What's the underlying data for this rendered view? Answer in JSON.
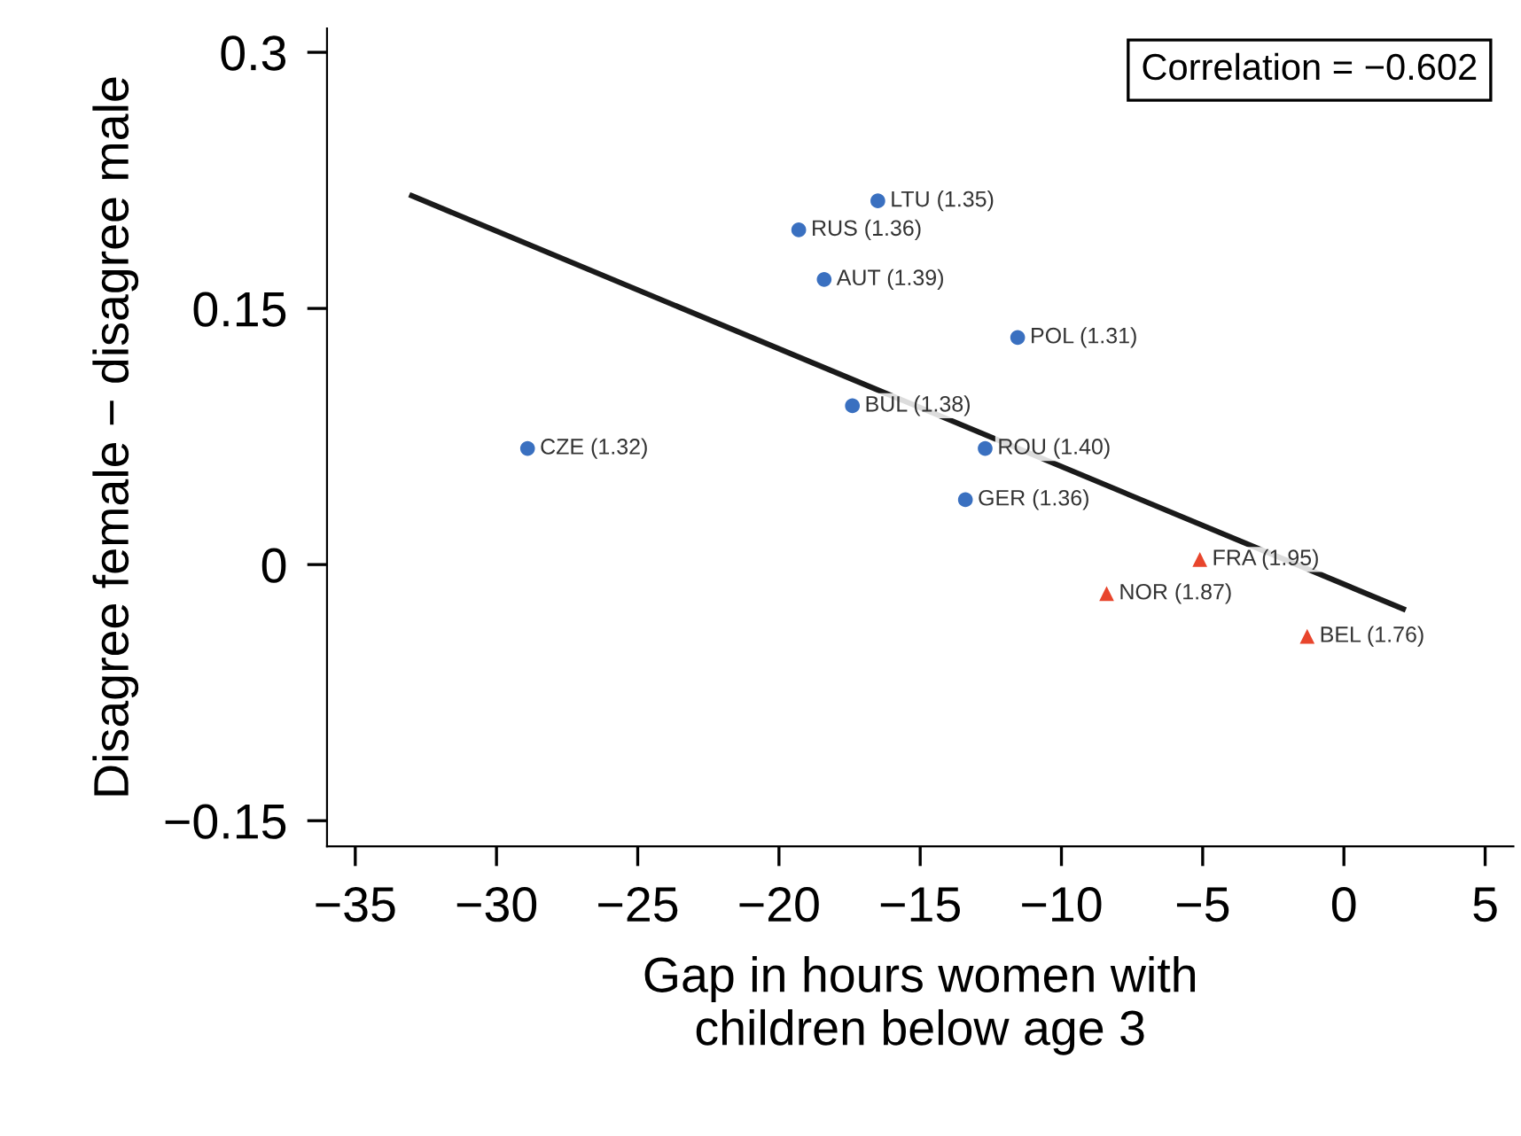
{
  "chart_data": {
    "type": "scatter",
    "xlabel": "Gap in hours women with\nchildren below age 3",
    "ylabel": "Disagree female − disagree male",
    "xlim": [
      -36,
      6
    ],
    "ylim": [
      -0.165,
      0.314
    ],
    "xticks": [
      {
        "value": -35,
        "label": "−35"
      },
      {
        "value": -30,
        "label": "−30"
      },
      {
        "value": -25,
        "label": "−25"
      },
      {
        "value": -20,
        "label": "−20"
      },
      {
        "value": -15,
        "label": "−15"
      },
      {
        "value": -10,
        "label": "−10"
      },
      {
        "value": -5,
        "label": "−5"
      },
      0,
      5
    ],
    "yticks": [
      {
        "value": -0.15,
        "label": "−0.15"
      },
      0,
      0.15,
      0.3
    ],
    "grid": false,
    "legend": false,
    "series": [
      {
        "color": "#3a70c0",
        "marker": "circle",
        "x": [
          -16.5,
          -19.3,
          -18.4,
          -11.55,
          -17.4,
          -28.9,
          -12.7,
          -13.4
        ],
        "values": [
          0.213,
          0.196,
          0.167,
          0.133,
          0.093,
          0.068,
          0.068,
          0.038
        ]
      },
      {
        "color": "#e8452c",
        "marker": "triangle",
        "x": [
          -5.1,
          -8.4,
          -1.3
        ],
        "values": [
          0.003,
          -0.017,
          -0.042
        ]
      },
      {
        "type": "line",
        "color": "#1a1a1a",
        "marker": "none",
        "line_style": "solid",
        "x": [
          -33.0,
          2.1
        ],
        "values": [
          0.216,
          -0.026
        ]
      }
    ],
    "annotations": [
      {
        "text": "LTU (1.35)",
        "x": -16.5,
        "y": 0.213
      },
      {
        "text": "RUS (1.36)",
        "x": -19.3,
        "y": 0.196
      },
      {
        "text": "AUT (1.39)",
        "x": -18.4,
        "y": 0.167
      },
      {
        "text": "POL (1.31)",
        "x": -11.55,
        "y": 0.133
      },
      {
        "text": "BUL (1.38)",
        "x": -17.4,
        "y": 0.093
      },
      {
        "text": "CZE (1.32)",
        "x": -28.9,
        "y": 0.068
      },
      {
        "text": "ROU (1.40)",
        "x": -12.7,
        "y": 0.068
      },
      {
        "text": "GER (1.36)",
        "x": -13.4,
        "y": 0.038
      },
      {
        "text": "FRA (1.95)",
        "x": -5.1,
        "y": 0.003
      },
      {
        "text": "NOR (1.87)",
        "x": -8.4,
        "y": -0.017
      },
      {
        "text": "BEL (1.76)",
        "x": -1.3,
        "y": -0.042
      },
      "Correlation = −0.602"
    ]
  }
}
